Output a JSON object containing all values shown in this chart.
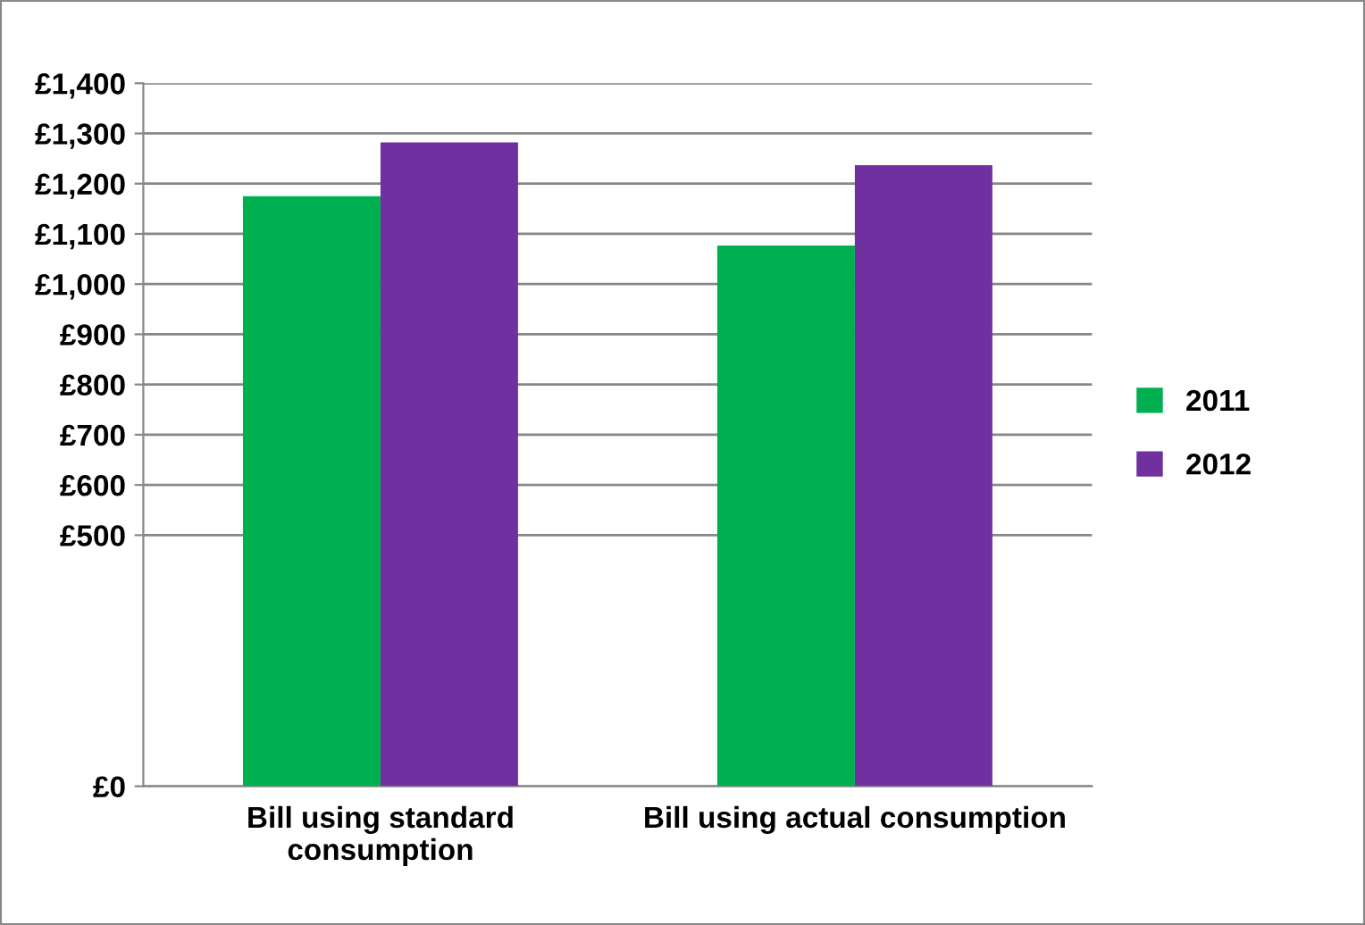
{
  "chart_data": {
    "type": "bar",
    "categories": [
      "Bill using standard\nconsumption",
      "Bill using actual consumption"
    ],
    "series": [
      {
        "name": "2011",
        "color": "#00b050",
        "values": [
          1175,
          1077
        ]
      },
      {
        "name": "2012",
        "color": "#7030a0",
        "values": [
          1282,
          1237
        ]
      }
    ],
    "ylim": [
      0,
      1400
    ],
    "yticks": [
      {
        "value": 0,
        "label": "£0"
      },
      {
        "value": 500,
        "label": "£500"
      },
      {
        "value": 600,
        "label": "£600"
      },
      {
        "value": 700,
        "label": "£700"
      },
      {
        "value": 800,
        "label": "£800"
      },
      {
        "value": 900,
        "label": "£900"
      },
      {
        "value": 1000,
        "label": "£1,000"
      },
      {
        "value": 1100,
        "label": "£1,100"
      },
      {
        "value": 1200,
        "label": "£1,200"
      },
      {
        "value": 1300,
        "label": "£1,300"
      },
      {
        "value": 1400,
        "label": "£1,400"
      }
    ],
    "grid": "y",
    "legend": "right"
  }
}
